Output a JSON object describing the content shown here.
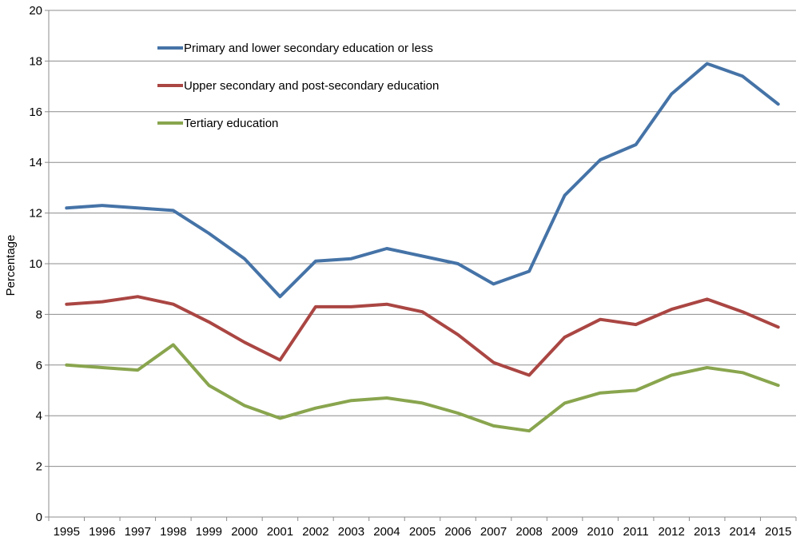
{
  "chart_data": {
    "type": "line",
    "title": "",
    "xlabel": "",
    "ylabel": "Percentage",
    "ylim": [
      0,
      20
    ],
    "ytick_step": 2,
    "yticks": [
      "0",
      "2",
      "4",
      "6",
      "8",
      "10",
      "12",
      "14",
      "16",
      "18",
      "20"
    ],
    "grid": true,
    "legend_position": "top-left",
    "categories": [
      "1995",
      "1996",
      "1997",
      "1998",
      "1999",
      "2000",
      "2001",
      "2002",
      "2003",
      "2004",
      "2005",
      "2006",
      "2007",
      "2008",
      "2009",
      "2010",
      "2011",
      "2012",
      "2013",
      "2014",
      "2015"
    ],
    "series": [
      {
        "name": "Primary and lower secondary education or less",
        "color": "#4573a7",
        "values": [
          12.2,
          12.3,
          12.2,
          12.1,
          11.2,
          10.2,
          8.7,
          10.1,
          10.2,
          10.6,
          10.3,
          10.0,
          9.2,
          9.7,
          12.7,
          14.1,
          14.7,
          16.7,
          17.9,
          17.4,
          16.3
        ]
      },
      {
        "name": "Upper secondary and post-secondary education",
        "color": "#aa4643",
        "values": [
          8.4,
          8.5,
          8.7,
          8.4,
          7.7,
          6.9,
          6.2,
          8.3,
          8.3,
          8.4,
          8.1,
          7.2,
          6.1,
          5.6,
          7.1,
          7.8,
          7.6,
          8.2,
          8.6,
          8.1,
          7.5
        ]
      },
      {
        "name": "Tertiary education",
        "color": "#89a54e",
        "values": [
          6.0,
          5.9,
          5.8,
          6.8,
          5.2,
          4.4,
          3.9,
          4.3,
          4.6,
          4.7,
          4.5,
          4.1,
          3.6,
          3.4,
          4.5,
          4.9,
          5.0,
          5.6,
          5.9,
          5.7,
          5.2
        ]
      }
    ]
  }
}
